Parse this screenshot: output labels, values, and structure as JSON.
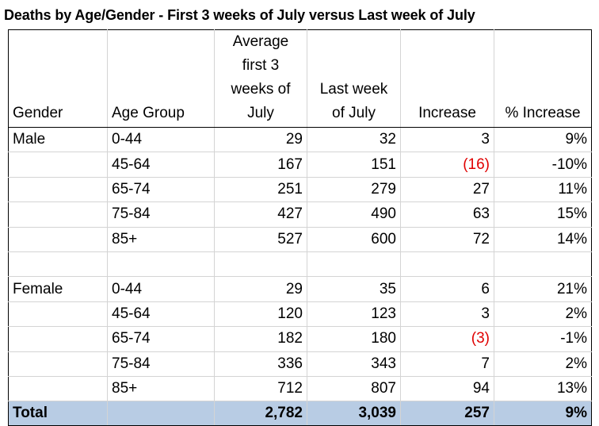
{
  "title": "Deaths by Age/Gender - First 3 weeks of July versus Last week of July",
  "headers": {
    "gender": "Gender",
    "age_group": "Age Group",
    "avg_first3": [
      "Average",
      "first 3",
      "weeks of",
      "July"
    ],
    "last_week": [
      "Last week",
      "of July"
    ],
    "increase": "Increase",
    "pct_increase": "% Increase"
  },
  "rows": [
    {
      "gender": "Male",
      "age": "0-44",
      "avg": "29",
      "last": "32",
      "inc": "3",
      "pct": "9%"
    },
    {
      "gender": "",
      "age": "45-64",
      "avg": "167",
      "last": "151",
      "inc": "(16)",
      "pct": "-10%"
    },
    {
      "gender": "",
      "age": "65-74",
      "avg": "251",
      "last": "279",
      "inc": "27",
      "pct": "11%"
    },
    {
      "gender": "",
      "age": "75-84",
      "avg": "427",
      "last": "490",
      "inc": "63",
      "pct": "15%"
    },
    {
      "gender": "",
      "age": "85+",
      "avg": "527",
      "last": "600",
      "inc": "72",
      "pct": "14%"
    },
    {
      "gender": "",
      "age": "",
      "avg": "",
      "last": "",
      "inc": "",
      "pct": ""
    },
    {
      "gender": "Female",
      "age": "0-44",
      "avg": "29",
      "last": "35",
      "inc": "6",
      "pct": "21%"
    },
    {
      "gender": "",
      "age": "45-64",
      "avg": "120",
      "last": "123",
      "inc": "3",
      "pct": "2%"
    },
    {
      "gender": "",
      "age": "65-74",
      "avg": "182",
      "last": "180",
      "inc": "(3)",
      "pct": "-1%"
    },
    {
      "gender": "",
      "age": "75-84",
      "avg": "336",
      "last": "343",
      "inc": "7",
      "pct": "2%"
    },
    {
      "gender": "",
      "age": "85+",
      "avg": "712",
      "last": "807",
      "inc": "94",
      "pct": "13%"
    }
  ],
  "total": {
    "label": "Total",
    "avg": "2,782",
    "last": "3,039",
    "inc": "257",
    "pct": "9%"
  },
  "colors": {
    "negative": "#e00000",
    "total_fill": "#b8cce4",
    "grid": "#d4d4d4"
  }
}
